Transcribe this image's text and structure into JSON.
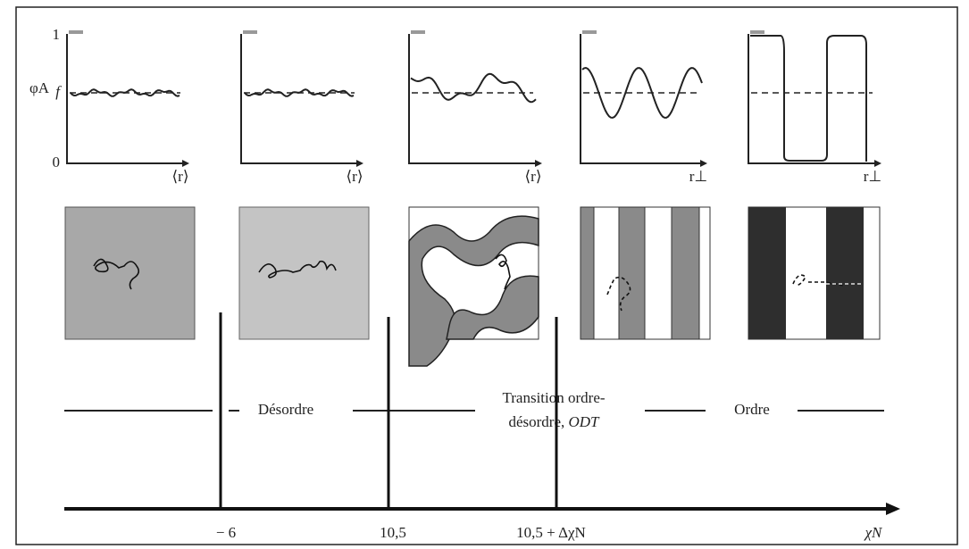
{
  "plots": [
    {
      "y_top_label": "1",
      "y_label": "φA",
      "y_mid_label": "f",
      "y_bottom_label": "0",
      "x_label": "⟨r⟩"
    },
    {
      "x_label": "⟨r⟩"
    },
    {
      "x_label": "⟨r⟩"
    },
    {
      "x_label": "r⊥"
    },
    {
      "x_label": "r⊥"
    }
  ],
  "phases": {
    "disorder": "Désordre",
    "transition_line1": "Transition ordre-",
    "transition_line2": "désordre, ",
    "transition_abbr": "ODT",
    "order": "Ordre"
  },
  "axis": {
    "ticks": [
      "− 6",
      "10,5",
      "10,5 + ΔχN"
    ],
    "label": "χN"
  }
}
